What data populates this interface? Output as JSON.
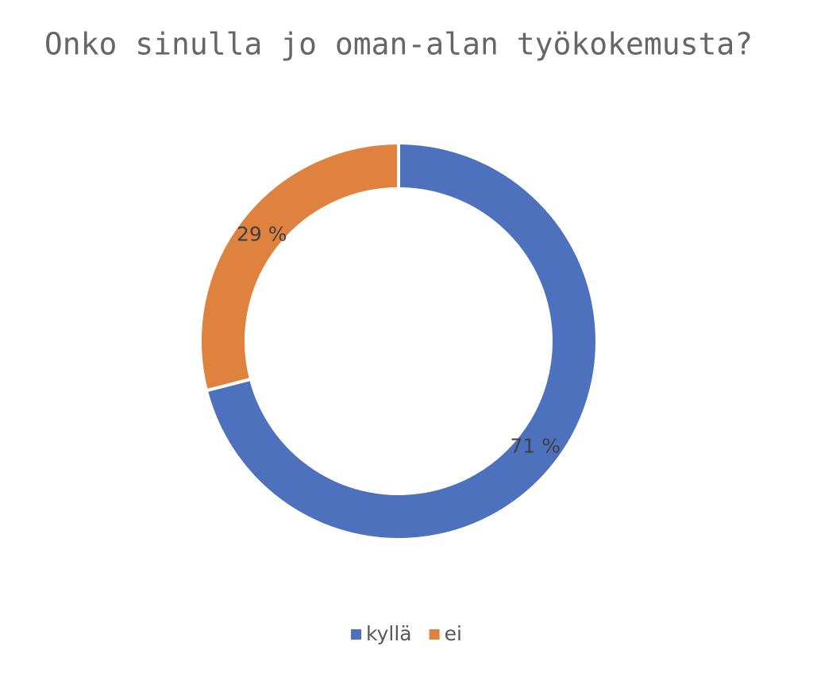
{
  "chart_data": {
    "type": "donut",
    "title": "Onko sinulla jo oman-alan työkokemusta?",
    "categories": [
      "kyllä",
      "ei"
    ],
    "values": [
      71,
      29
    ],
    "value_labels": [
      "71 %",
      "29 %"
    ],
    "colors": [
      "#4e71be",
      "#e0823f"
    ],
    "legend": "bottom"
  }
}
